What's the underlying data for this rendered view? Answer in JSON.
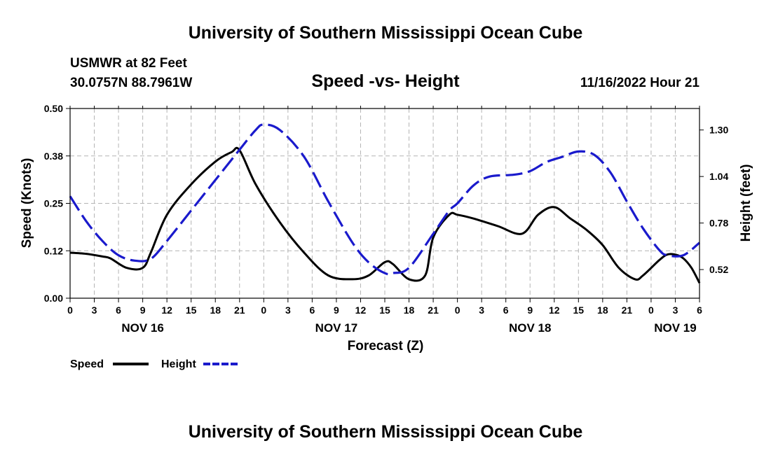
{
  "header": {
    "title": "University of Southern Mississippi Ocean Cube",
    "station": "USMWR at 82 Feet",
    "coords": "30.0757N  88.7961W",
    "chart_title": "Speed -vs- Height",
    "timestamp": "11/16/2022 Hour 21"
  },
  "footer": {
    "title": "University of Southern Mississippi Ocean Cube"
  },
  "legend": {
    "speed_label": "Speed",
    "height_label": "Height"
  },
  "colors": {
    "speed": "#000000",
    "height": "#1a1acc",
    "grid": "#b4b4b4"
  },
  "chart_data": {
    "type": "line",
    "title": "Speed -vs- Height",
    "xlabel": "Forecast (Z)",
    "ylabel": "Speed (Knots)",
    "y2label": "Height (feet)",
    "xlim": [
      0,
      78
    ],
    "ylim": [
      0,
      0.5
    ],
    "y2lim": [
      0.36,
      1.42
    ],
    "x_tick_values": [
      0,
      3,
      6,
      9,
      12,
      15,
      18,
      21,
      24,
      27,
      30,
      33,
      36,
      39,
      42,
      45,
      48,
      51,
      54,
      57,
      60,
      63,
      66,
      69,
      72,
      75,
      78
    ],
    "x_tick_labels": [
      "0",
      "3",
      "6",
      "9",
      "12",
      "15",
      "18",
      "21",
      "0",
      "3",
      "6",
      "9",
      "12",
      "15",
      "18",
      "21",
      "0",
      "3",
      "6",
      "9",
      "12",
      "15",
      "18",
      "21",
      "0",
      "3",
      "6"
    ],
    "day_labels": [
      {
        "x": 9,
        "label": "NOV 16"
      },
      {
        "x": 33,
        "label": "NOV 17"
      },
      {
        "x": 57,
        "label": "NOV 18"
      },
      {
        "x": 75,
        "label": "NOV 19"
      }
    ],
    "y_ticks": [
      {
        "value": 0.0,
        "label": "0.00"
      },
      {
        "value": 0.125,
        "label": "0.12"
      },
      {
        "value": 0.25,
        "label": "0.25"
      },
      {
        "value": 0.375,
        "label": "0.38"
      },
      {
        "value": 0.5,
        "label": "0.50"
      }
    ],
    "y2_ticks": [
      {
        "value": 0.52,
        "label": "0.52"
      },
      {
        "value": 0.78,
        "label": "0.78"
      },
      {
        "value": 1.04,
        "label": "1.04"
      },
      {
        "value": 1.3,
        "label": "1.30"
      }
    ],
    "series": [
      {
        "name": "Speed",
        "axis": "left",
        "style": "solid",
        "x": [
          0,
          2,
          4,
          5,
          7,
          9,
          10,
          12,
          15,
          18,
          20,
          21,
          23,
          26,
          29,
          32,
          35,
          37,
          39,
          40,
          42,
          44,
          45,
          47,
          48,
          50,
          53,
          56,
          58,
          60,
          62,
          64,
          66,
          68,
          70,
          71,
          73,
          74,
          75,
          76,
          77,
          78
        ],
        "values": [
          0.12,
          0.117,
          0.11,
          0.105,
          0.08,
          0.08,
          0.12,
          0.22,
          0.3,
          0.36,
          0.385,
          0.39,
          0.3,
          0.2,
          0.12,
          0.06,
          0.05,
          0.06,
          0.095,
          0.09,
          0.05,
          0.06,
          0.16,
          0.22,
          0.22,
          0.21,
          0.19,
          0.17,
          0.22,
          0.24,
          0.21,
          0.18,
          0.14,
          0.08,
          0.05,
          0.06,
          0.1,
          0.115,
          0.115,
          0.105,
          0.08,
          0.04
        ]
      },
      {
        "name": "Height",
        "axis": "right",
        "style": "dashed",
        "x": [
          0,
          2,
          4,
          6,
          8,
          10,
          12,
          15,
          18,
          21,
          23,
          24,
          26,
          29,
          32,
          35,
          37,
          39,
          40,
          42,
          45,
          47,
          48,
          50,
          52,
          55,
          57,
          59,
          61,
          63,
          65,
          67,
          69,
          71,
          73,
          74,
          76,
          78
        ],
        "values": [
          0.93,
          0.79,
          0.68,
          0.6,
          0.57,
          0.58,
          0.68,
          0.85,
          1.02,
          1.19,
          1.3,
          1.33,
          1.3,
          1.15,
          0.9,
          0.67,
          0.56,
          0.5,
          0.5,
          0.53,
          0.72,
          0.85,
          0.89,
          0.99,
          1.04,
          1.05,
          1.07,
          1.12,
          1.15,
          1.18,
          1.16,
          1.06,
          0.9,
          0.75,
          0.63,
          0.6,
          0.6,
          0.67
        ]
      }
    ]
  }
}
